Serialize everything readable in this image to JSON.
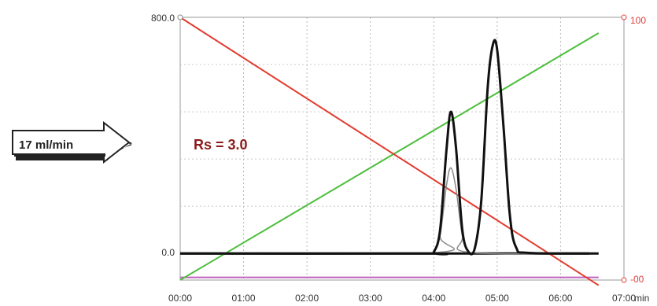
{
  "chart_data": {
    "type": "line",
    "xlabel": "",
    "ylabel": "",
    "x_ticks": [
      "00:00",
      "01:00",
      "02:00",
      "03:00",
      "04:00",
      "05:00",
      "06:00",
      "07:00"
    ],
    "x_unit": "min",
    "x_range": [
      0,
      7
    ],
    "y_left_ticks": [
      "800.0",
      "0.0"
    ],
    "y_left_range": [
      -90,
      800
    ],
    "y_right_ticks": [
      "100",
      "-00"
    ],
    "y_right_range": [
      0,
      100
    ],
    "grid": true,
    "annotations": {
      "resolution": "Rs = 3.0",
      "flow_rate": "17 ml/min"
    },
    "colors": {
      "red_line": "#e23b2e",
      "green_line": "#4cbf3c",
      "black_trace": "#111111",
      "gray_trace": "#8a8a8a",
      "magenta_line": "#c060c0",
      "right_axis": "#e04040"
    },
    "series": [
      {
        "role": "red",
        "axis": "right",
        "x": [
          0.0,
          6.6
        ],
        "y": [
          100,
          -2
        ]
      },
      {
        "role": "green",
        "axis": "right",
        "x": [
          0.0,
          6.6
        ],
        "y": [
          0,
          94
        ]
      },
      {
        "role": "magenta",
        "axis": "right",
        "x": [
          0.0,
          6.6
        ],
        "y": [
          1,
          1
        ]
      },
      {
        "role": "black",
        "axis": "left",
        "x": [
          0.0,
          3.9,
          4.0,
          4.1,
          4.2,
          4.27,
          4.35,
          4.45,
          4.55,
          4.65,
          4.75,
          4.85,
          4.93,
          5.0,
          5.1,
          5.2,
          5.3,
          5.5,
          6.6
        ],
        "y": [
          0,
          0,
          5,
          80,
          350,
          480,
          360,
          80,
          5,
          20,
          180,
          560,
          705,
          690,
          430,
          130,
          20,
          2,
          0
        ]
      },
      {
        "role": "gray",
        "axis": "left",
        "x": [
          0.0,
          4.0,
          4.1,
          4.2,
          4.27,
          4.35,
          4.45,
          4.55,
          6.6
        ],
        "y": [
          0,
          3,
          60,
          230,
          290,
          220,
          60,
          4,
          0
        ]
      }
    ]
  }
}
